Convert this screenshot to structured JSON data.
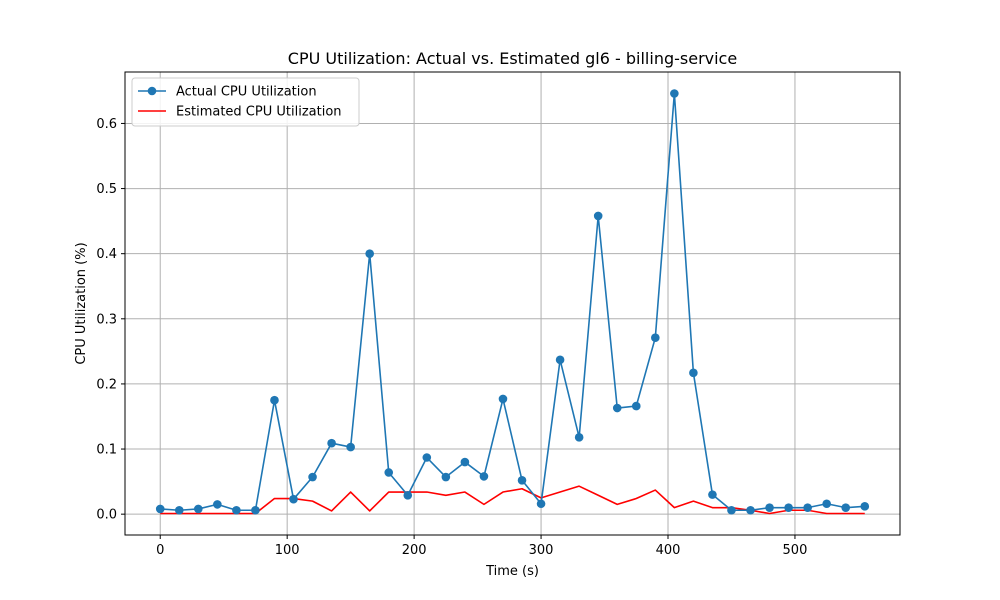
{
  "chart_data": {
    "type": "line",
    "title": "CPU Utilization: Actual vs. Estimated gl6 - billing-service",
    "xlabel": "Time (s)",
    "ylabel": "CPU Utilization (%)",
    "xlim": [
      -27.75,
      582.75
    ],
    "ylim": [
      -0.032,
      0.679
    ],
    "xticks": [
      0,
      100,
      200,
      300,
      400,
      500
    ],
    "yticks": [
      0.0,
      0.1,
      0.2,
      0.3,
      0.4,
      0.5,
      0.6
    ],
    "ytick_labels": [
      "0.0",
      "0.1",
      "0.2",
      "0.3",
      "0.4",
      "0.5",
      "0.6"
    ],
    "grid": true,
    "legend_position": "top-left",
    "x": [
      0,
      15,
      30,
      45,
      60,
      75,
      90,
      105,
      120,
      135,
      150,
      165,
      180,
      195,
      210,
      225,
      240,
      255,
      270,
      285,
      300,
      315,
      330,
      345,
      360,
      375,
      390,
      405,
      420,
      435,
      450,
      465,
      480,
      495,
      510,
      525,
      540,
      555
    ],
    "series": [
      {
        "name": "Actual CPU Utilization",
        "color": "#1f77b4",
        "marker": "circle",
        "values": [
          0.008,
          0.006,
          0.008,
          0.015,
          0.006,
          0.006,
          0.175,
          0.023,
          0.057,
          0.109,
          0.103,
          0.4,
          0.064,
          0.029,
          0.087,
          0.057,
          0.08,
          0.058,
          0.177,
          0.052,
          0.016,
          0.237,
          0.118,
          0.458,
          0.163,
          0.166,
          0.271,
          0.646,
          0.217,
          0.03,
          0.006,
          0.006,
          0.01,
          0.01,
          0.01,
          0.016,
          0.01,
          0.012
        ]
      },
      {
        "name": "Estimated CPU Utilization",
        "color": "#ff0000",
        "marker": "none",
        "values": [
          0.001,
          0.001,
          0.001,
          0.001,
          0.001,
          0.001,
          0.024,
          0.024,
          0.02,
          0.005,
          0.034,
          0.005,
          0.034,
          0.034,
          0.034,
          0.029,
          0.034,
          0.015,
          0.034,
          0.039,
          0.025,
          0.034,
          0.043,
          0.029,
          0.015,
          0.024,
          0.037,
          0.01,
          0.02,
          0.01,
          0.01,
          0.006,
          0.001,
          0.006,
          0.006,
          0.001,
          0.001,
          0.001
        ]
      }
    ]
  }
}
